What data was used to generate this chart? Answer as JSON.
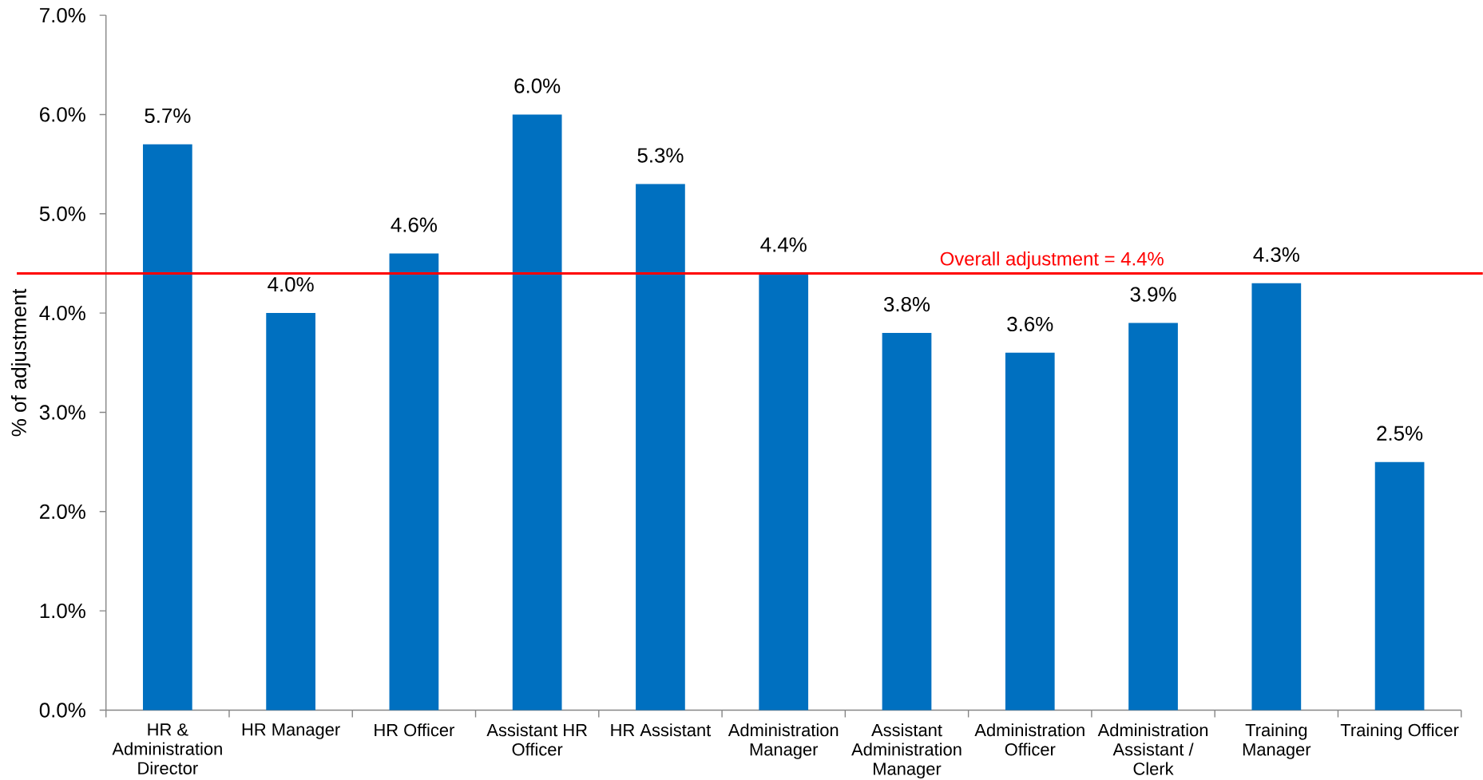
{
  "chart_data": {
    "type": "bar",
    "ylabel": "% of adjustment",
    "categories": [
      "HR & Administration Director",
      "HR Manager",
      "HR Officer",
      "Assistant HR Officer",
      "HR Assistant",
      "Administration Manager",
      "Assistant Administration Manager",
      "Administration Officer",
      "Administration Assistant / Clerk",
      "Training Manager",
      "Training Officer"
    ],
    "values": [
      5.7,
      4.0,
      4.6,
      6.0,
      5.3,
      4.4,
      3.8,
      3.6,
      3.9,
      4.3,
      2.5
    ],
    "value_labels": [
      "5.7%",
      "4.0%",
      "4.6%",
      "6.0%",
      "5.3%",
      "4.4%",
      "3.8%",
      "3.6%",
      "3.9%",
      "4.3%",
      "2.5%"
    ],
    "color": "#0070c0",
    "ylim": [
      0,
      7
    ],
    "yticks": [
      {
        "value": 0,
        "label": "0.0%"
      },
      {
        "value": 1,
        "label": "1.0%"
      },
      {
        "value": 2,
        "label": "2.0%"
      },
      {
        "value": 3,
        "label": "3.0%"
      },
      {
        "value": 4,
        "label": "4.0%"
      },
      {
        "value": 5,
        "label": "5.0%"
      },
      {
        "value": 6,
        "label": "6.0%"
      },
      {
        "value": 7,
        "label": "7.0%"
      }
    ],
    "ref_lines": [
      {
        "axis": "y",
        "value": 4.4,
        "label": "Overall adjustment = 4.4%",
        "color": "#ff0000",
        "line_style": "solid"
      }
    ]
  }
}
